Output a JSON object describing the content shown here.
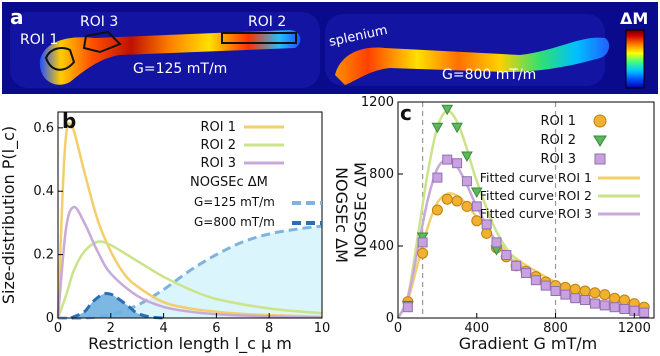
{
  "panels": {
    "a": {
      "label": "a",
      "roi_labels": [
        "ROI 1",
        "ROI 3",
        "ROI 2"
      ],
      "splenium_label": "splenium",
      "g_left": "G=125 mT/m",
      "g_right": "G=800 mT/m",
      "colorbar_label": "ΔM",
      "colormap": [
        "#0000aa",
        "#0050ff",
        "#00c8ff",
        "#40ff80",
        "#ffff00",
        "#ff8000",
        "#d00000",
        "#600000"
      ]
    },
    "b": {
      "label": "b",
      "legend_title": "NOGSEc ΔM",
      "g_labels": [
        "G=125 mT/m",
        "G=800 mT/m"
      ],
      "right_axis_label": "NOGSEc ΔM"
    },
    "c": {
      "label": "c"
    }
  },
  "chart_data": [
    {
      "type": "line",
      "id": "b",
      "xlabel": "Restriction length l_c μ m",
      "ylabel": "Size-distribution P(l_c)",
      "xlim": [
        0,
        10
      ],
      "ylim": [
        0,
        0.65
      ],
      "xticks": [
        0,
        2,
        4,
        6,
        8,
        10
      ],
      "yticks": [
        0,
        0.2,
        0.4,
        0.6
      ],
      "series": [
        {
          "name": "ROI 1",
          "color": "#f2cf6b",
          "x": [
            0,
            0.25,
            0.5,
            1,
            1.5,
            2,
            2.5,
            3,
            4,
            5,
            6,
            7,
            8,
            10
          ],
          "y": [
            0,
            0.52,
            0.61,
            0.46,
            0.31,
            0.21,
            0.14,
            0.1,
            0.05,
            0.03,
            0.02,
            0.013,
            0.009,
            0.004
          ]
        },
        {
          "name": "ROI 2",
          "color": "#cbe38a",
          "x": [
            0,
            0.3,
            0.6,
            1,
            1.5,
            2,
            3,
            4,
            5,
            6,
            8,
            10
          ],
          "y": [
            0,
            0.07,
            0.15,
            0.21,
            0.24,
            0.23,
            0.18,
            0.13,
            0.09,
            0.06,
            0.03,
            0.015
          ]
        },
        {
          "name": "ROI 3",
          "color": "#c8a9d8",
          "x": [
            0,
            0.3,
            0.6,
            1,
            1.5,
            2,
            3,
            4,
            5,
            6,
            8,
            10
          ],
          "y": [
            0,
            0.28,
            0.35,
            0.3,
            0.21,
            0.14,
            0.07,
            0.035,
            0.02,
            0.012,
            0.005,
            0.002
          ]
        }
      ],
      "signals": [
        {
          "name": "G=125 mT/m",
          "color": "#7fb3de",
          "dashed": true,
          "filled": true,
          "x": [
            0,
            1,
            2,
            3,
            4,
            5,
            6,
            7,
            8,
            9,
            10
          ],
          "y": [
            0,
            0,
            0.01,
            0.04,
            0.09,
            0.15,
            0.2,
            0.24,
            0.265,
            0.28,
            0.29
          ]
        },
        {
          "name": "G=800 mT/m",
          "color": "#2a6fb4",
          "dashed": true,
          "filled": true,
          "x": [
            0.5,
            1,
            1.3,
            1.7,
            2,
            2.3,
            2.7,
            3,
            3.5,
            4
          ],
          "y": [
            0,
            0.02,
            0.05,
            0.075,
            0.075,
            0.06,
            0.035,
            0.015,
            0.003,
            0
          ]
        }
      ]
    },
    {
      "type": "scatter",
      "id": "c",
      "xlabel": "Gradient G  mT/m",
      "ylabel": "NOGSEc ΔM",
      "xlim": [
        0,
        1300
      ],
      "ylim": [
        0,
        1200
      ],
      "xticks": [
        0,
        400,
        800,
        1200
      ],
      "yticks": [
        0,
        400,
        800,
        1200
      ],
      "vlines": [
        125,
        800
      ],
      "series": [
        {
          "name": "ROI 1",
          "marker": "circle",
          "color": "#f0b030",
          "x": [
            50,
            125,
            200,
            250,
            300,
            350,
            400,
            450,
            500,
            550,
            600,
            650,
            700,
            750,
            800,
            850,
            900,
            950,
            1000,
            1050,
            1100,
            1150,
            1200,
            1250
          ],
          "y": [
            90,
            360,
            600,
            660,
            650,
            620,
            540,
            470,
            390,
            340,
            290,
            260,
            230,
            200,
            180,
            170,
            160,
            150,
            140,
            130,
            110,
            100,
            80,
            60
          ]
        },
        {
          "name": "ROI 2",
          "marker": "triangle",
          "color": "#5cb85c",
          "x": [
            50,
            125,
            200,
            250,
            300,
            350,
            400,
            450,
            500
          ],
          "y": [
            70,
            450,
            1060,
            1160,
            1060,
            900,
            700,
            520,
            380
          ]
        },
        {
          "name": "ROI 3",
          "marker": "square",
          "color": "#c9a0e0",
          "x": [
            50,
            125,
            200,
            250,
            300,
            350,
            400,
            450,
            500,
            550,
            600,
            650,
            700,
            750,
            800,
            850,
            900,
            950,
            1000,
            1050,
            1100,
            1150,
            1200,
            1250
          ],
          "y": [
            60,
            420,
            780,
            880,
            860,
            760,
            620,
            520,
            420,
            350,
            290,
            250,
            210,
            180,
            150,
            130,
            110,
            100,
            80,
            70,
            60,
            50,
            40,
            30
          ]
        }
      ],
      "fits": [
        {
          "name": "Fitted curve ROI 1",
          "color": "#f2cf6b",
          "x": [
            0,
            50,
            100,
            150,
            200,
            250,
            300,
            350,
            400,
            500,
            600,
            700,
            800,
            900,
            1000,
            1100,
            1200,
            1250
          ],
          "y": [
            0,
            100,
            300,
            500,
            640,
            690,
            680,
            630,
            560,
            430,
            330,
            260,
            200,
            160,
            130,
            100,
            80,
            70
          ]
        },
        {
          "name": "Fitted curve ROI 2",
          "color": "#cbe38a",
          "x": [
            0,
            50,
            100,
            150,
            200,
            250,
            300,
            350,
            400,
            500,
            600,
            700,
            800,
            900,
            1000,
            1100,
            1200,
            1250
          ],
          "y": [
            0,
            120,
            450,
            800,
            1060,
            1150,
            1090,
            940,
            760,
            480,
            320,
            230,
            170,
            130,
            100,
            80,
            60,
            50
          ]
        },
        {
          "name": "Fitted curve ROI 3",
          "color": "#c8a9d8",
          "x": [
            0,
            50,
            100,
            150,
            200,
            250,
            300,
            350,
            400,
            500,
            600,
            700,
            800,
            900,
            1000,
            1100,
            1200,
            1250
          ],
          "y": [
            0,
            110,
            380,
            650,
            830,
            880,
            840,
            740,
            620,
            420,
            300,
            220,
            160,
            120,
            90,
            70,
            50,
            40
          ]
        }
      ]
    }
  ]
}
